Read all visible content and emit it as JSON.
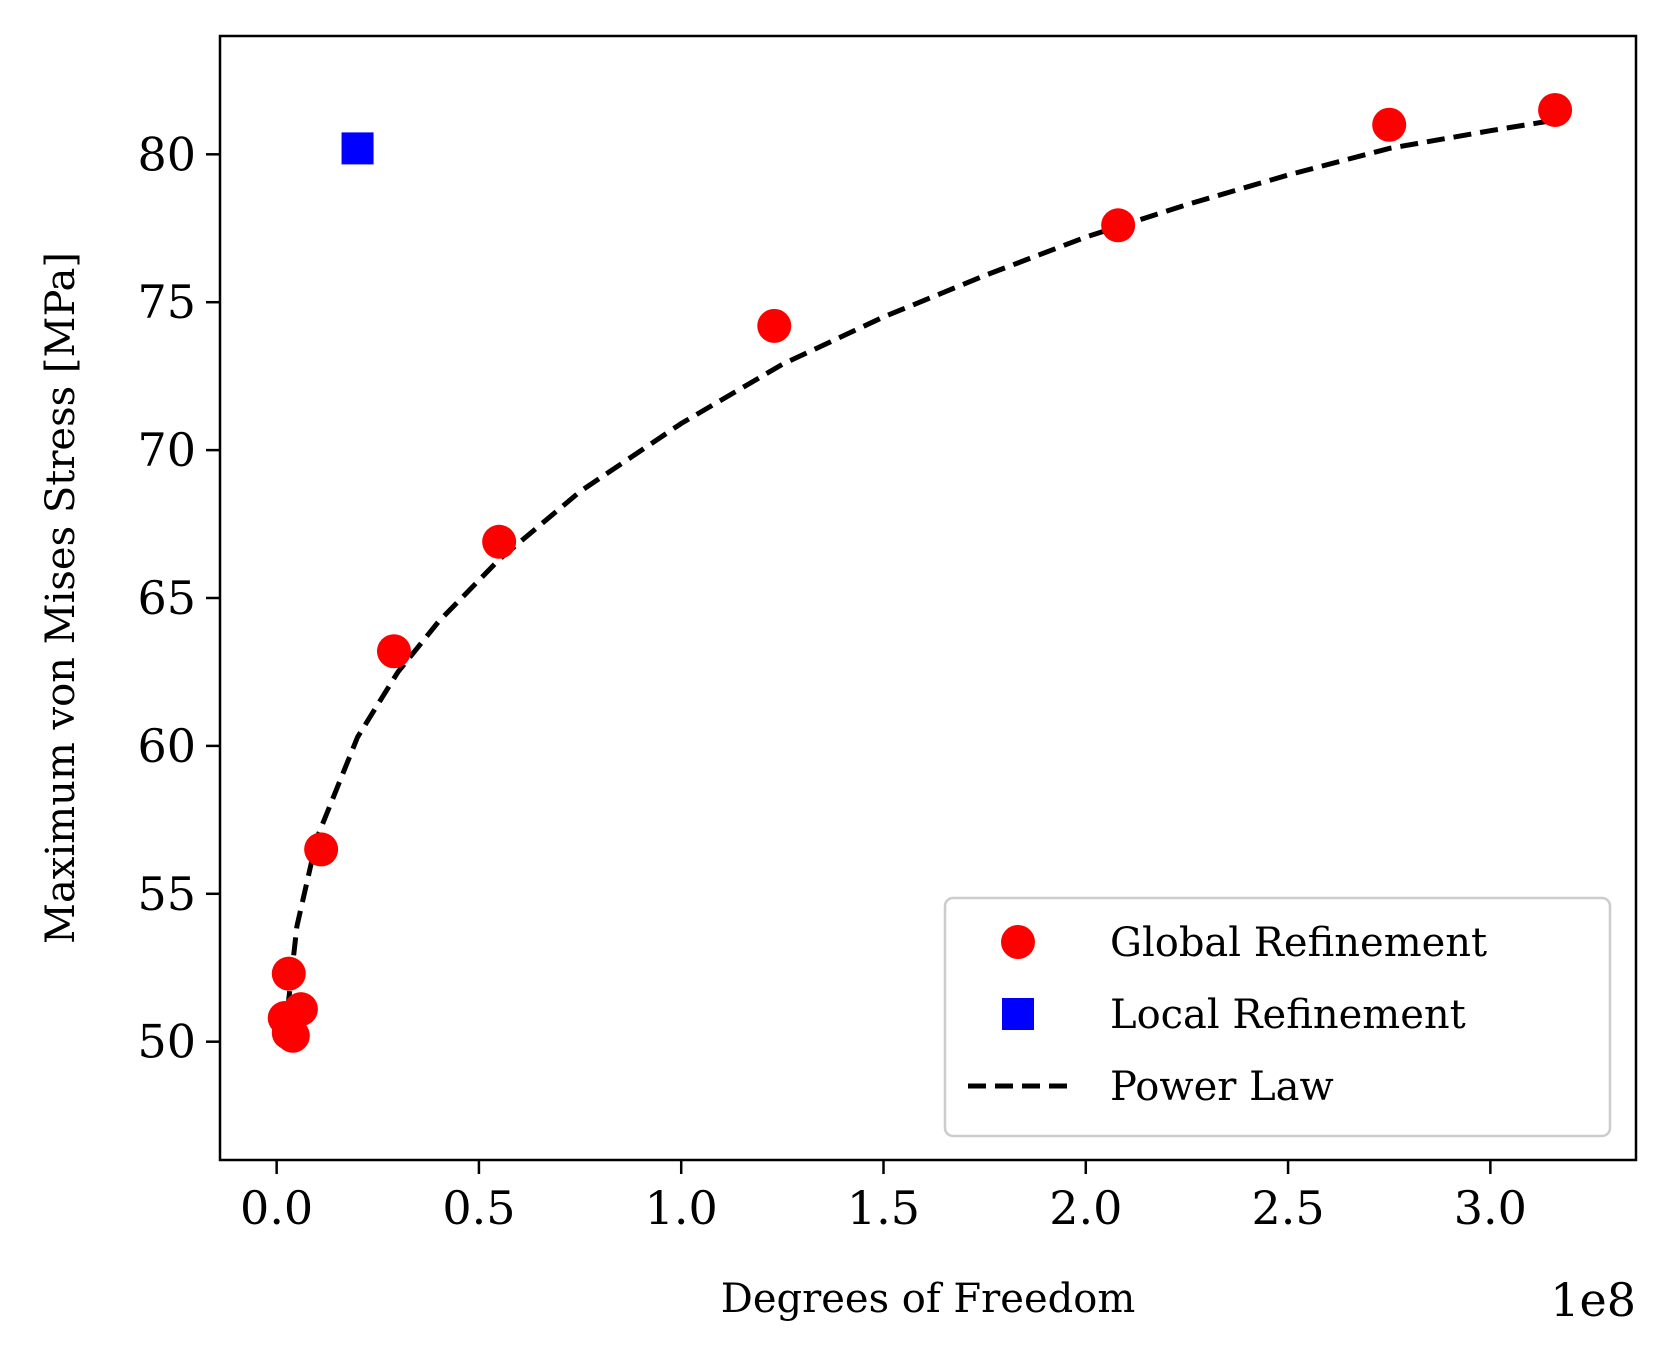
{
  "chart_data": {
    "type": "scatter",
    "xlabel": "Degrees of Freedom",
    "ylabel": "Maximum von Mises Stress [MPa]",
    "x_offset_label": "1e8",
    "x_scale_factor": 100000000,
    "xlim": [
      -14000000.0,
      336000000.0
    ],
    "ylim": [
      46,
      84
    ],
    "x_ticks": [
      0.0,
      0.5,
      1.0,
      1.5,
      2.0,
      2.5,
      3.0
    ],
    "x_tick_labels": [
      "0.0",
      "0.5",
      "1.0",
      "1.5",
      "2.0",
      "2.5",
      "3.0"
    ],
    "y_ticks": [
      50,
      55,
      60,
      65,
      70,
      75,
      80
    ],
    "y_tick_labels": [
      "50",
      "55",
      "60",
      "65",
      "70",
      "75",
      "80"
    ],
    "grid": false,
    "legend_position": "lower-right",
    "series": [
      {
        "name": "Global Refinement",
        "kind": "scatter",
        "marker": "circle",
        "color": "#ff0000",
        "points": [
          [
            2000000.0,
            50.8
          ],
          [
            3000000.0,
            50.3
          ],
          [
            4000000.0,
            50.2
          ],
          [
            6000000.0,
            51.1
          ],
          [
            3000000.0,
            52.3
          ],
          [
            11000000.0,
            56.5
          ],
          [
            29000000.0,
            63.2
          ],
          [
            55000000.0,
            66.9
          ],
          [
            123000000.0,
            74.2
          ],
          [
            208000000.0,
            77.6
          ],
          [
            275000000.0,
            81.0
          ],
          [
            316000000.0,
            81.5
          ]
        ]
      },
      {
        "name": "Local Refinement",
        "kind": "scatter",
        "marker": "square",
        "color": "#0000ff",
        "points": [
          [
            20000000.0,
            80.2
          ]
        ]
      },
      {
        "name": "Power Law",
        "kind": "line",
        "style": "dashed",
        "color": "#000000",
        "points": [
          [
            2000000.0,
            50.2
          ],
          [
            5000000.0,
            53.9
          ],
          [
            10000000.0,
            56.9
          ],
          [
            20000000.0,
            60.3
          ],
          [
            30000000.0,
            62.5
          ],
          [
            40000000.0,
            64.2
          ],
          [
            55000000.0,
            66.3
          ],
          [
            75000000.0,
            68.6
          ],
          [
            100000000.0,
            70.9
          ],
          [
            125000000.0,
            72.9
          ],
          [
            150000000.0,
            74.5
          ],
          [
            175000000.0,
            75.9
          ],
          [
            200000000.0,
            77.2
          ],
          [
            225000000.0,
            78.3
          ],
          [
            250000000.0,
            79.3
          ],
          [
            275000000.0,
            80.2
          ],
          [
            300000000.0,
            80.8
          ],
          [
            318000000.0,
            81.2
          ]
        ]
      }
    ]
  }
}
